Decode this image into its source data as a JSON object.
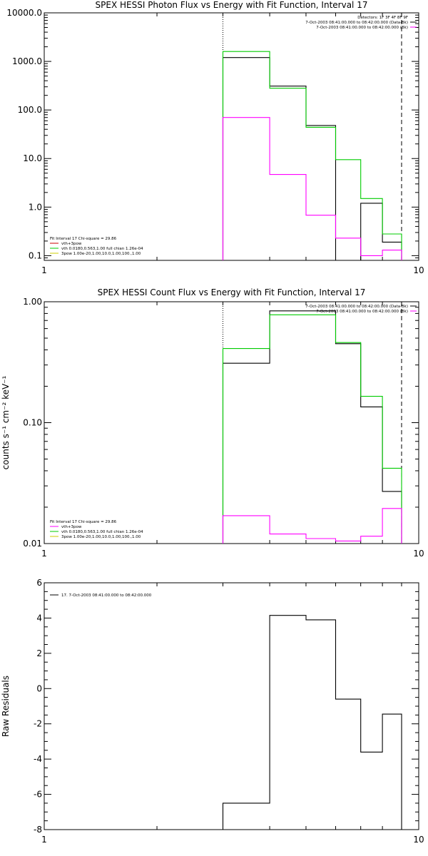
{
  "colors": {
    "background": "#ffffff",
    "axes": "#000000",
    "data": "#000000",
    "total_fit": "#00cc00",
    "thermal_component": "#ff00ff",
    "thermal_label_photon": "#cc0000",
    "power_law_component": "#cccc00"
  },
  "chart_data": [
    {
      "type": "line",
      "title": "SPEX HESSI Photon Flux vs Energy with Fit Function, Interval 17",
      "xlabel": "",
      "ylabel": "",
      "x_scale": "log",
      "y_scale": "log",
      "xlim": [
        1,
        10
      ],
      "ylim": [
        0.08,
        10000
      ],
      "x_ticks": [
        1,
        10
      ],
      "x_tick_labels": [
        "1",
        "10"
      ],
      "y_ticks": [
        0.1,
        1,
        10,
        100,
        1000,
        10000
      ],
      "y_tick_labels": [
        "0.1",
        "1.0",
        "10.0",
        "100.0",
        "1000.0",
        "10000.0"
      ],
      "grid": false,
      "vlines": [
        {
          "x": 3.0,
          "style": "dotted"
        },
        {
          "x": 9.0,
          "style": "dashed"
        }
      ],
      "info_lines": [
        "Detectors: 1F 3F 4F 8F 9F",
        "7-Oct-2003 08:41:00.000 to 08:42:00.000 (Data-Bk)",
        "7-Oct-2003 08:41:00.000 to 08:42:00.000 (Bk)"
      ],
      "info_legend": [
        {
          "label": "",
          "color": "#000000"
        },
        {
          "label": "",
          "color": "#ff00ff"
        }
      ],
      "fit_legend_header": "Fit Interval 17   Chi-square = 29.86",
      "fit_legend": [
        {
          "label": "vth+3pow",
          "color": "#cc0000"
        },
        {
          "label": "vth 0.0180,0.563,1.00  full chian 1.26e-04",
          "color": "#00cc00"
        },
        {
          "label": "3pow 1.00e-20,1.00,10.0,1.00,100.,1.00",
          "color": "#cccc00"
        }
      ],
      "series": [
        {
          "name": "7-Oct-2003 08:41:00.000 to 08:42:00.000 (Data-Bk)",
          "color": "#000000",
          "edges": [
            3,
            4,
            5,
            6,
            7,
            8,
            9
          ],
          "values": [
            1200,
            310,
            48,
            0.08,
            1.2,
            0.19
          ]
        },
        {
          "name": "",
          "color": "#00cc00",
          "edges": [
            3,
            4,
            5,
            6,
            7,
            8,
            9
          ],
          "values": [
            1600,
            280,
            44,
            9.5,
            1.5,
            0.28
          ]
        },
        {
          "name": "",
          "color": "#ff00ff",
          "edges": [
            3,
            4,
            5,
            6,
            7,
            8,
            9
          ],
          "values": [
            70,
            4.7,
            0.68,
            0.23,
            0.1,
            0.13
          ]
        }
      ]
    },
    {
      "type": "line",
      "title": "SPEX HESSI Count Flux vs Energy with Fit Function, Interval 17",
      "xlabel": "",
      "ylabel": "counts s⁻¹ cm⁻² keV⁻¹",
      "x_scale": "log",
      "y_scale": "log",
      "xlim": [
        1,
        10
      ],
      "ylim": [
        0.01,
        1.0
      ],
      "x_ticks": [
        1,
        10
      ],
      "x_tick_labels": [
        "1",
        "10"
      ],
      "y_ticks": [
        0.01,
        0.1,
        1.0
      ],
      "y_tick_labels": [
        "0.01",
        "0.10",
        "1.00"
      ],
      "grid": false,
      "vlines": [
        {
          "x": 3.0,
          "style": "dotted"
        },
        {
          "x": 9.0,
          "style": "dashed"
        }
      ],
      "info_lines": [
        "7-Oct-2003 08:41:00.000 to 08:42:00.000 (Data-Bk)",
        "7-Oct-2003 08:41:00.000 to 08:42:00.000 (Bk)"
      ],
      "info_legend": [
        {
          "label": "",
          "color": "#000000"
        },
        {
          "label": "",
          "color": "#ff00ff"
        }
      ],
      "fit_legend_header": "Fit Interval 17   Chi-square = 29.86",
      "fit_legend": [
        {
          "label": "vth+3pow",
          "color": "#ff00ff"
        },
        {
          "label": "vth 0.0180,0.563,1.00  full chian 1.26e-04",
          "color": "#00cc00"
        },
        {
          "label": "3pow 1.00e-20,1.00,10.0,1.00,100.,1.00",
          "color": "#cccc00"
        }
      ],
      "series": [
        {
          "name": "",
          "color": "#000000",
          "edges": [
            3,
            4,
            5,
            6,
            7,
            8,
            9
          ],
          "values": [
            0.31,
            0.84,
            0.84,
            0.45,
            0.135,
            0.027
          ]
        },
        {
          "name": "",
          "color": "#00cc00",
          "edges": [
            3,
            4,
            5,
            6,
            7,
            8,
            9
          ],
          "values": [
            0.41,
            0.78,
            0.78,
            0.46,
            0.165,
            0.042
          ]
        },
        {
          "name": "",
          "color": "#ff00ff",
          "edges": [
            3,
            4,
            5,
            6,
            7,
            8,
            9
          ],
          "values": [
            0.017,
            0.012,
            0.011,
            0.0105,
            0.0115,
            0.0195
          ]
        }
      ]
    },
    {
      "type": "line",
      "title": "",
      "xlabel": "",
      "ylabel": "Raw Residuals",
      "x_scale": "log",
      "y_scale": "linear",
      "xlim": [
        1,
        10
      ],
      "ylim": [
        -8,
        6
      ],
      "x_ticks": [
        1,
        10
      ],
      "x_tick_labels": [
        "1",
        "10"
      ],
      "y_ticks": [
        -8,
        -6,
        -4,
        -2,
        0,
        2,
        4,
        6
      ],
      "y_tick_labels": [
        "-8",
        "-6",
        "-4",
        "-2",
        "0",
        "2",
        "4",
        "6"
      ],
      "grid": false,
      "vlines": [],
      "info_lines": [],
      "info_legend": [],
      "fit_legend_header": "",
      "fit_legend": [
        {
          "label": "17. 7-Oct-2003 08:41:00.000 to 08:42:00.000",
          "color": "#000000"
        }
      ],
      "series": [
        {
          "name": "17. 7-Oct-2003 08:41:00.000 to 08:42:00.000",
          "color": "#000000",
          "edges": [
            3,
            4,
            5,
            6,
            7,
            8,
            9
          ],
          "values": [
            -6.5,
            4.15,
            3.9,
            -0.6,
            -3.6,
            -1.45
          ]
        }
      ]
    }
  ]
}
